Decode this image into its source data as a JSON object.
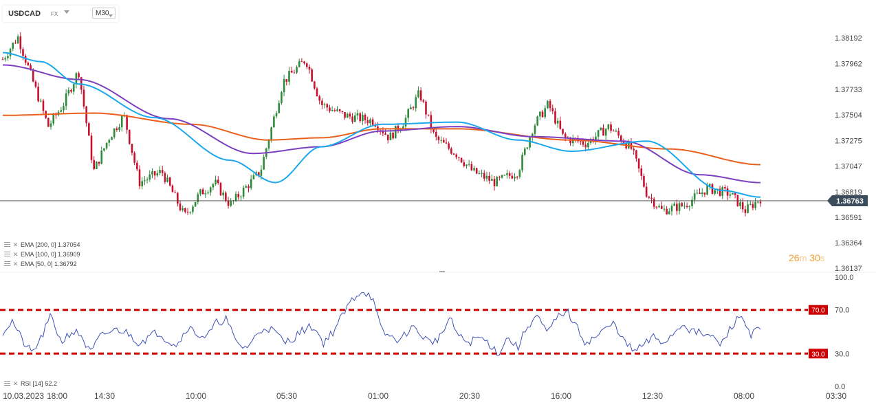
{
  "header": {
    "symbol": "USDCAD",
    "market": "FX",
    "timeframe": "M30"
  },
  "indicators": {
    "ema_rows": [
      {
        "label": "EMA [200, 0] 1.37054",
        "color": "#e8601c"
      },
      {
        "label": "EMA [100, 0] 1.36909",
        "color": "#7b3fbf"
      },
      {
        "label": "EMA [50, 0] 1.36792",
        "color": "#1aa7ec"
      }
    ],
    "rsi_label": "RSI [14]",
    "rsi_value": "52.2"
  },
  "countdown": {
    "minutes": "26",
    "m_unit": "m",
    "seconds": "30",
    "s_unit": "s"
  },
  "colors": {
    "bull": "#2e8b3a",
    "bear": "#c8102e",
    "ema200": "#e8601c",
    "ema100": "#7b3fbf",
    "ema50": "#1aa7ec",
    "rsi_line": "#3f51b5",
    "rsi_level": "#cc0000"
  },
  "chart_data": [
    {
      "type": "candlestick",
      "title": "USDCAD",
      "y_ticks": [
        "1.38192",
        "1.37962",
        "1.37733",
        "1.37504",
        "1.37275",
        "1.37047",
        "1.36819",
        "1.36591",
        "1.36364",
        "1.36137"
      ],
      "ylim": [
        1.36137,
        1.38192
      ],
      "current_price": "1.36763",
      "current_price_value": 1.36763,
      "x_ticks": [
        "10.03.2023",
        "18:00",
        "14:30",
        "10:00",
        "05:30",
        "01:00",
        "20:30",
        "16:00",
        "12:30",
        "08:00",
        "03:30"
      ],
      "grid": false,
      "series": [
        {
          "name": "EMA [200, 0]",
          "last_value": 1.37054,
          "x": [
            0,
            0.12,
            0.25,
            0.35,
            0.42,
            0.5,
            0.6,
            0.75,
            0.88,
            1.0
          ],
          "y": [
            1.375,
            1.3752,
            1.3742,
            1.3728,
            1.373,
            1.3738,
            1.3738,
            1.3728,
            1.372,
            1.3706
          ]
        },
        {
          "name": "EMA [100, 0]",
          "last_value": 1.36909,
          "x": [
            0,
            0.1,
            0.22,
            0.33,
            0.42,
            0.5,
            0.6,
            0.7,
            0.82,
            0.92,
            1.0
          ],
          "y": [
            1.3795,
            1.3782,
            1.3747,
            1.3716,
            1.3722,
            1.3736,
            1.374,
            1.3731,
            1.3727,
            1.3697,
            1.369
          ]
        },
        {
          "name": "EMA [50, 0]",
          "last_value": 1.36792,
          "x": [
            0,
            0.05,
            0.1,
            0.2,
            0.3,
            0.36,
            0.42,
            0.5,
            0.6,
            0.68,
            0.75,
            0.85,
            0.95,
            1.0
          ],
          "y": [
            1.3806,
            1.3798,
            1.3778,
            1.3748,
            1.371,
            1.369,
            1.3722,
            1.3742,
            1.3744,
            1.3728,
            1.3718,
            1.3727,
            1.3683,
            1.3677
          ]
        }
      ],
      "candles_shape": [
        [
          0.0,
          1.38
        ],
        [
          0.02,
          1.382
        ],
        [
          0.04,
          1.378
        ],
        [
          0.06,
          1.374
        ],
        [
          0.08,
          1.376
        ],
        [
          0.1,
          1.379
        ],
        [
          0.12,
          1.37
        ],
        [
          0.14,
          1.373
        ],
        [
          0.16,
          1.375
        ],
        [
          0.18,
          1.369
        ],
        [
          0.21,
          1.37
        ],
        [
          0.24,
          1.366
        ],
        [
          0.26,
          1.368
        ],
        [
          0.28,
          1.369
        ],
        [
          0.3,
          1.367
        ],
        [
          0.34,
          1.37
        ],
        [
          0.37,
          1.378
        ],
        [
          0.4,
          1.38
        ],
        [
          0.42,
          1.376
        ],
        [
          0.45,
          1.375
        ],
        [
          0.49,
          1.3745
        ],
        [
          0.51,
          1.373
        ],
        [
          0.53,
          1.3745
        ],
        [
          0.55,
          1.377
        ],
        [
          0.57,
          1.373
        ],
        [
          0.6,
          1.3715
        ],
        [
          0.62,
          1.37
        ],
        [
          0.65,
          1.369
        ],
        [
          0.68,
          1.37
        ],
        [
          0.7,
          1.374
        ],
        [
          0.72,
          1.376
        ],
        [
          0.74,
          1.373
        ],
        [
          0.77,
          1.3725
        ],
        [
          0.8,
          1.374
        ],
        [
          0.83,
          1.372
        ],
        [
          0.85,
          1.368
        ],
        [
          0.87,
          1.3665
        ],
        [
          0.9,
          1.367
        ],
        [
          0.93,
          1.3685
        ],
        [
          0.96,
          1.368
        ],
        [
          0.98,
          1.3665
        ],
        [
          1.0,
          1.3676
        ]
      ]
    },
    {
      "type": "line",
      "title": "RSI [14]",
      "y_ticks": [
        "100.0",
        "70.0",
        "30.0",
        "0.0"
      ],
      "ylim": [
        0,
        100
      ],
      "levels": [
        "70.0",
        "30.0"
      ],
      "last_value": 52.2,
      "series": [
        {
          "name": "RSI [14]",
          "y": [
            50,
            60,
            42,
            30,
            45,
            65,
            40,
            50,
            48,
            30,
            45,
            50,
            52,
            48,
            40,
            45,
            50,
            42,
            38,
            55,
            48,
            45,
            58,
            62,
            40,
            35,
            45,
            55,
            50,
            40,
            45,
            52,
            55,
            40,
            50,
            65,
            80,
            88,
            82,
            50,
            45,
            42,
            55,
            48,
            40,
            45,
            62,
            45,
            40,
            45,
            40,
            30,
            45,
            35,
            55,
            65,
            48,
            62,
            70,
            55,
            40,
            45,
            52,
            58,
            40,
            32,
            38,
            45,
            40,
            48,
            58,
            50,
            48,
            45,
            38,
            55,
            65,
            48,
            52
          ]
        }
      ]
    }
  ]
}
